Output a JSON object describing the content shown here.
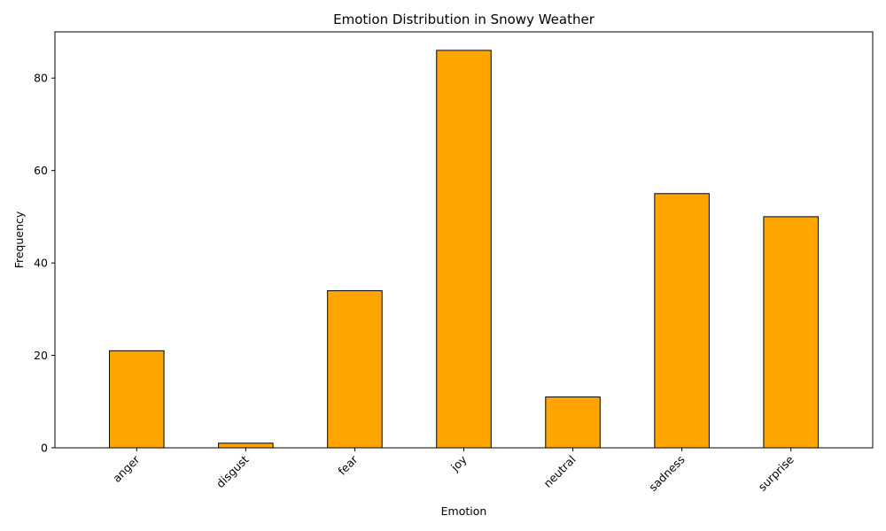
{
  "chart_data": {
    "type": "bar",
    "title": "Emotion Distribution in Snowy Weather",
    "xlabel": "Emotion",
    "ylabel": "Frequency",
    "categories": [
      "anger",
      "disgust",
      "fear",
      "joy",
      "neutral",
      "sadness",
      "surprise"
    ],
    "values": [
      21,
      1,
      34,
      86,
      11,
      55,
      50
    ],
    "ylim": [
      0,
      90
    ],
    "yticks": [
      0,
      20,
      40,
      60,
      80
    ],
    "bar_color": "#FFA500",
    "edge_color": "#000000",
    "grid": false,
    "legend": "none",
    "xtick_rotation": 45
  }
}
